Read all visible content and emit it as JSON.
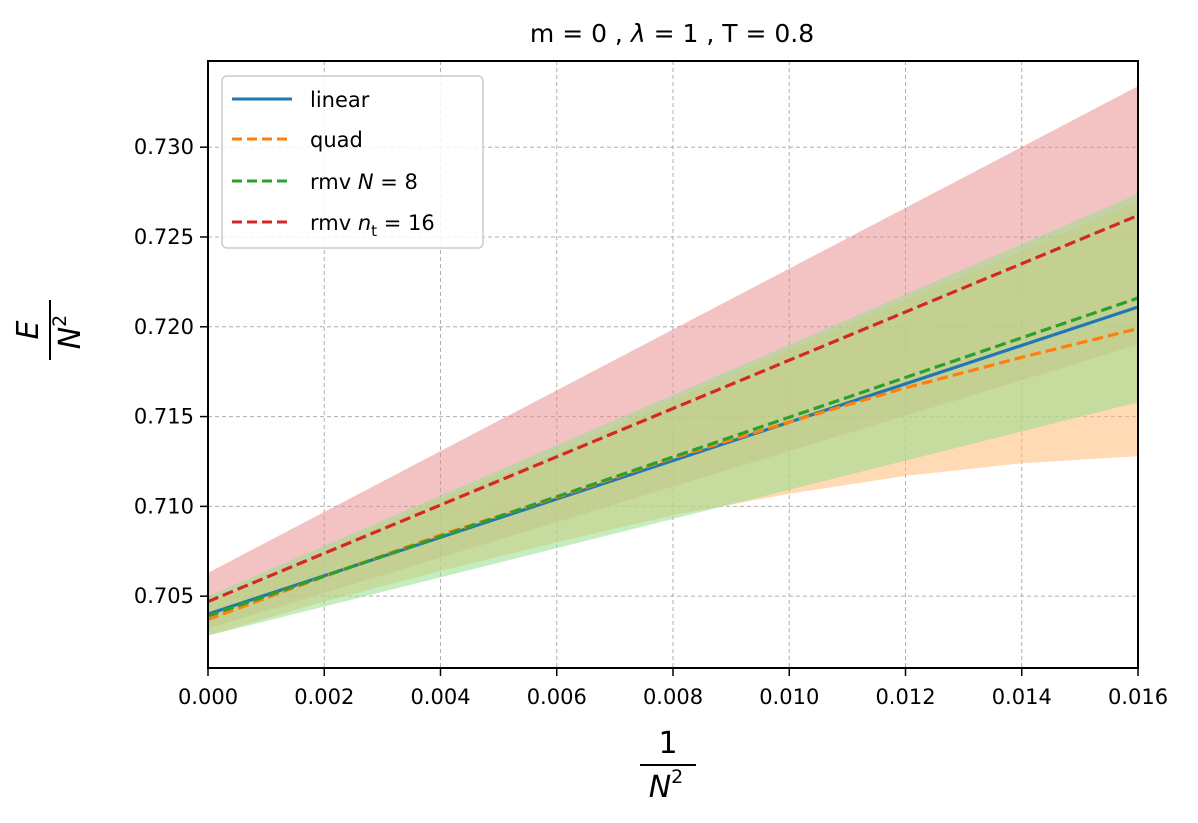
{
  "chart_data": {
    "type": "line",
    "title": "m = 0 , λ = 1 , T = 0.8",
    "title_parts": {
      "a": "m = 0 , ",
      "lam": "λ",
      "b": " = 1 , T = 0.8"
    },
    "xlabel": {
      "num": "1",
      "den": "N",
      "exp": "2"
    },
    "ylabel": {
      "num": "E",
      "den": "N",
      "exp": "2"
    },
    "xlim": [
      0.0,
      0.016
    ],
    "ylim": [
      0.701,
      0.7348
    ],
    "xticks": [
      0.0,
      0.002,
      0.004,
      0.006,
      0.008,
      0.01,
      0.012,
      0.014,
      0.016
    ],
    "xtick_labels": [
      "0.000",
      "0.002",
      "0.004",
      "0.006",
      "0.008",
      "0.010",
      "0.012",
      "0.014",
      "0.016"
    ],
    "yticks": [
      0.705,
      0.71,
      0.715,
      0.72,
      0.725,
      0.73
    ],
    "ytick_labels": [
      "0.705",
      "0.710",
      "0.715",
      "0.720",
      "0.725",
      "0.730"
    ],
    "grid": true,
    "legend_position": "top-left",
    "series": [
      {
        "name": "linear",
        "label_parts": {
          "a": "linear"
        },
        "color": "#1f77b4",
        "style": "solid",
        "x": [
          0.0,
          0.016
        ],
        "y": [
          0.704,
          0.7211
        ],
        "band": null
      },
      {
        "name": "quad",
        "label_parts": {
          "a": "quad"
        },
        "color": "#ff7f0e",
        "band_color": "#ffbb78",
        "style": "dashed",
        "x": [
          0.0,
          0.002,
          0.004,
          0.006,
          0.008,
          0.01,
          0.012,
          0.014,
          0.016
        ],
        "y": [
          0.7037,
          0.7061,
          0.7084,
          0.7105,
          0.7127,
          0.7147,
          0.7166,
          0.7183,
          0.7199
        ],
        "band": {
          "lower": [
            0.7028,
            0.7047,
            0.7064,
            0.708,
            0.7095,
            0.7107,
            0.7117,
            0.7124,
            0.7128
          ],
          "upper": [
            0.7046,
            0.7075,
            0.7104,
            0.713,
            0.7159,
            0.7187,
            0.7215,
            0.7242,
            0.727
          ]
        }
      },
      {
        "name": "rmv N = 8",
        "label_parts": {
          "a": "rmv ",
          "it": "N",
          "b": " = 8"
        },
        "color": "#2ca02c",
        "band_color": "#98df8a",
        "style": "dashed",
        "x": [
          0.0,
          0.016
        ],
        "y": [
          0.7039,
          0.7216
        ],
        "band": {
          "lower": [
            0.7028,
            0.7158
          ],
          "upper": [
            0.705,
            0.7274
          ]
        }
      },
      {
        "name": "rmv n_t = 16",
        "label_parts": {
          "a": "rmv ",
          "it": "n",
          "sub": "t",
          "b": " = 16"
        },
        "color": "#d62728",
        "band_color": "#e8888a",
        "style": "dashed",
        "x": [
          0.0,
          0.016
        ],
        "y": [
          0.7047,
          0.7262
        ],
        "band": {
          "lower": [
            0.7032,
            0.719
          ],
          "upper": [
            0.7063,
            0.7334
          ]
        }
      }
    ]
  }
}
